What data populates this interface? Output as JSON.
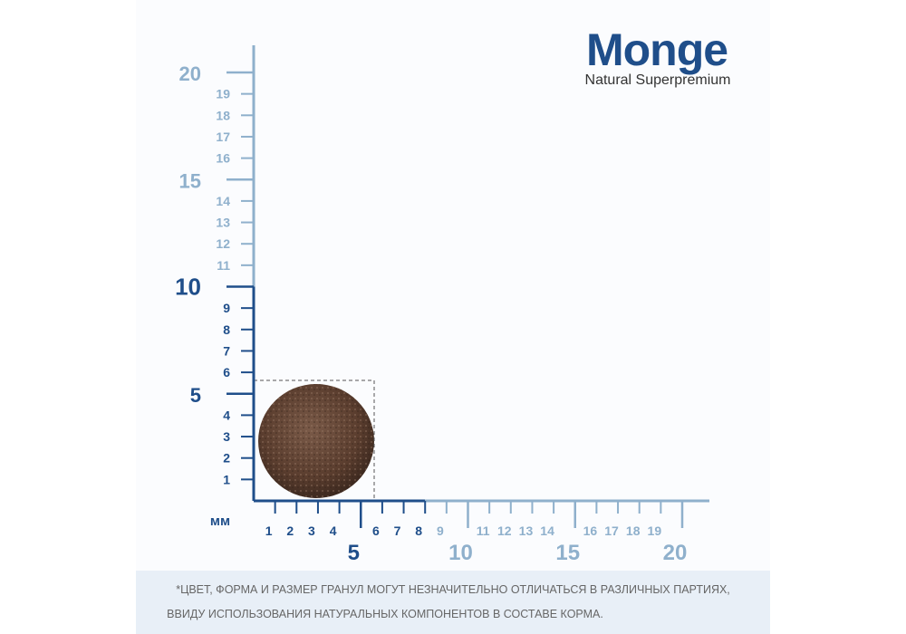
{
  "logo": {
    "brand": "Monge",
    "tagline": "Natural Superpremium"
  },
  "ruler": {
    "unit": "мм",
    "y_labels": [
      1,
      2,
      3,
      4,
      6,
      7,
      8,
      9,
      11,
      12,
      13,
      14,
      16,
      17,
      18,
      19
    ],
    "y_major": [
      5,
      10,
      15,
      20
    ],
    "x_labels": [
      1,
      2,
      3,
      4,
      6,
      7,
      8,
      9,
      11,
      12,
      13,
      14,
      16,
      17,
      18,
      19
    ],
    "x_major": [
      5,
      10,
      15,
      20
    ]
  },
  "note": {
    "lines": [
      "*ЦВЕТ, ФОРМА И РАЗМЕР ГРАНУЛ МОГУТ НЕЗНАЧИТЕЛЬНО ОТЛИЧАТЬСЯ В РАЗЛИЧНЫХ ПАРТИЯХ,",
      "ВВИДУ ИСПОЛЬЗОВАНИЯ НАТУРАЛЬНЫХ КОМПОНЕНТОВ В СОСТАВЕ КОРМА."
    ]
  }
}
